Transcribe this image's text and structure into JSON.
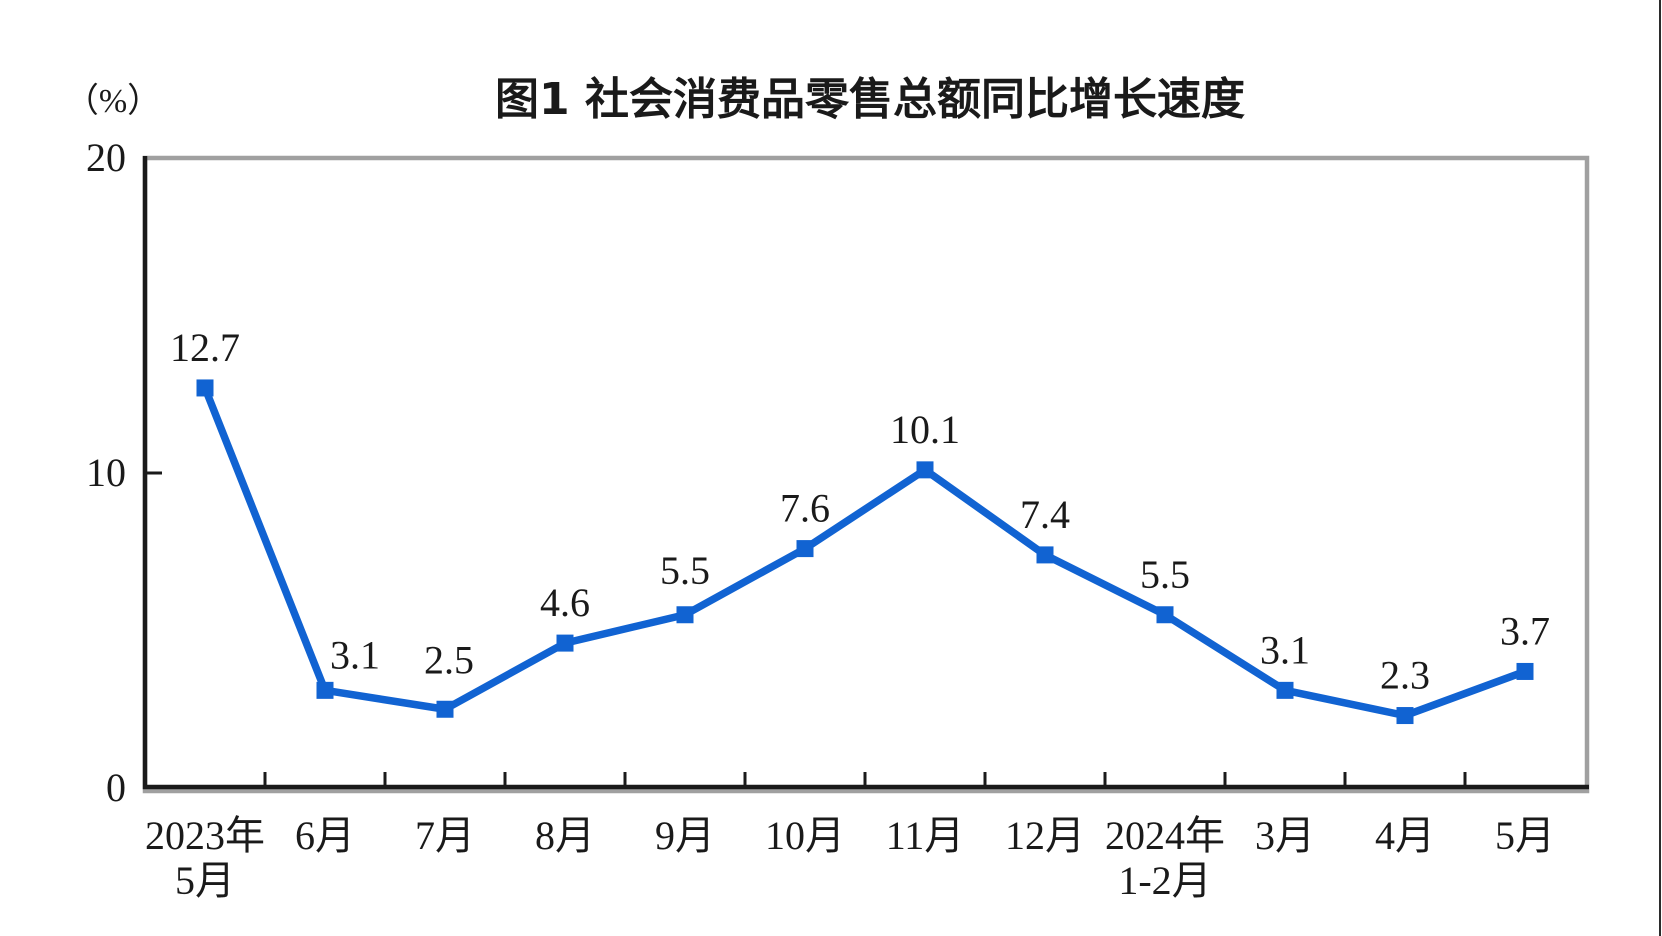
{
  "page": {
    "background": "#ffffff",
    "right_edge_line_color": "#2b2b2b"
  },
  "chart_data": {
    "type": "line",
    "title": "图1 社会消费品零售总额同比增长速度",
    "unit_label": "（%）",
    "categories": [
      [
        "2023年",
        "5月"
      ],
      [
        "6月"
      ],
      [
        "7月"
      ],
      [
        "8月"
      ],
      [
        "9月"
      ],
      [
        "10月"
      ],
      [
        "11月"
      ],
      [
        "12月"
      ],
      [
        "2024年",
        "1-2月"
      ],
      [
        "3月"
      ],
      [
        "4月"
      ],
      [
        "5月"
      ]
    ],
    "values": [
      12.7,
      3.1,
      2.5,
      4.6,
      5.5,
      7.6,
      10.1,
      7.4,
      5.5,
      3.1,
      2.3,
      3.7
    ],
    "data_labels": [
      "12.7",
      "3.1",
      "2.5",
      "4.6",
      "5.5",
      "7.6",
      "10.1",
      "7.4",
      "5.5",
      "3.1",
      "2.3",
      "3.7"
    ],
    "ylim": [
      0,
      20
    ],
    "yticks": [
      0,
      10,
      20
    ],
    "ytick_labels": [
      "0",
      "10",
      "20"
    ],
    "grid": false,
    "legend": "none",
    "line_color": "#1163D2",
    "marker": "square",
    "marker_color": "#1163D2",
    "text_color": "#1a1a1a",
    "axis_color": "#1a1a1a",
    "plot_border_color": "#a0a0a0"
  }
}
